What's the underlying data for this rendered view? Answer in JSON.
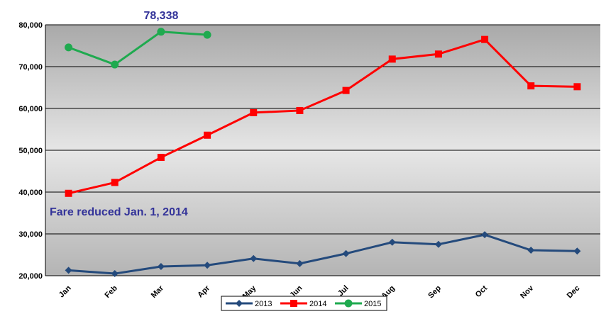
{
  "chart_data": {
    "type": "line",
    "categories": [
      "Jan",
      "Feb",
      "Mar",
      "Apr",
      "May",
      "Jun",
      "Jul",
      "Aug",
      "Sep",
      "Oct",
      "Nov",
      "Dec"
    ],
    "series": [
      {
        "name": "2013",
        "color": "#244a7c",
        "marker": "diamond",
        "values": [
          21300,
          20500,
          22200,
          22500,
          24100,
          22900,
          25300,
          28000,
          27500,
          29800,
          26100,
          25900
        ]
      },
      {
        "name": "2014",
        "color": "#ff0000",
        "marker": "square",
        "values": [
          39700,
          42300,
          48300,
          53600,
          59000,
          59500,
          64300,
          71800,
          73000,
          76500,
          65400,
          65200
        ]
      },
      {
        "name": "2015",
        "color": "#1faa4f",
        "marker": "circle",
        "values": [
          74600,
          70500,
          78338,
          77600,
          null,
          null,
          null,
          null,
          null,
          null,
          null,
          null
        ],
        "value_labels": [
          null,
          null,
          "78,338",
          null,
          null,
          null,
          null,
          null,
          null,
          null,
          null,
          null
        ]
      }
    ],
    "annotation": "Fare reduced Jan. 1, 2014",
    "ylim": [
      20000,
      80000
    ],
    "yticks": [
      {
        "value": 20000,
        "label": "20,000"
      },
      {
        "value": 30000,
        "label": "30,000"
      },
      {
        "value": 40000,
        "label": "40,000"
      },
      {
        "value": 50000,
        "label": "50,000"
      },
      {
        "value": 60000,
        "label": "60,000"
      },
      {
        "value": 70000,
        "label": "70,000"
      },
      {
        "value": 80000,
        "label": "80,000"
      }
    ],
    "grid": true,
    "legend": "bottom"
  }
}
